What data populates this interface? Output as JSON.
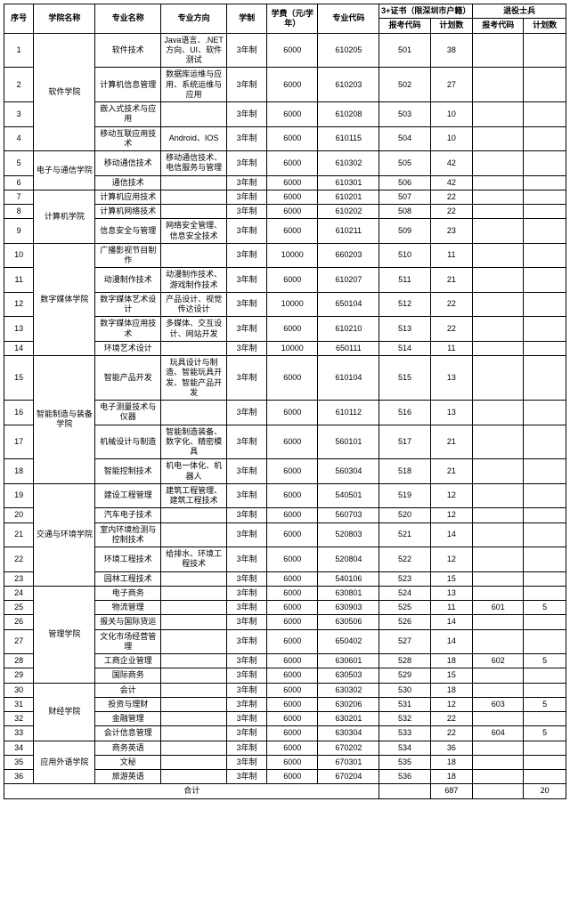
{
  "headers": {
    "seq": "序号",
    "dept": "学院名称",
    "major": "专业名称",
    "dir": "专业方向",
    "sys": "学制",
    "fee": "学费（元/学年）",
    "code": "专业代码",
    "group3": "3+证书（限深圳市户籍）",
    "groupVet": "退役士兵",
    "applyCode": "报考代码",
    "planCount": "计划数"
  },
  "colWidths": {
    "seq": 28,
    "dept": 58,
    "major": 62,
    "dir": 62,
    "sys": 38,
    "fee": 48,
    "code": 58,
    "c1": 48,
    "c2": 40,
    "c3": 48,
    "c4": 40
  },
  "styling": {
    "background_color": "#ffffff",
    "border_color": "#000000",
    "text_color": "#000000",
    "font_size_pt": 7,
    "font_family": "Microsoft YaHei / SimSun",
    "header_font_weight": "bold",
    "cell_align": "center"
  },
  "departments": [
    {
      "name": "软件学院",
      "rows": [
        {
          "seq": 1,
          "major": "软件技术",
          "dir": "Java语言、.NET方向、UI、软件测试",
          "sys": "3年制",
          "fee": "6000",
          "code": "610205",
          "c1": "501",
          "c2": "38",
          "c3": "",
          "c4": ""
        },
        {
          "seq": 2,
          "major": "计算机信息管理",
          "dir": "数据库运维与应用、系统运维与应用",
          "sys": "3年制",
          "fee": "6000",
          "code": "610203",
          "c1": "502",
          "c2": "27",
          "c3": "",
          "c4": ""
        },
        {
          "seq": 3,
          "major": "嵌入式技术与应用",
          "dir": "",
          "sys": "3年制",
          "fee": "6000",
          "code": "610208",
          "c1": "503",
          "c2": "10",
          "c3": "",
          "c4": ""
        },
        {
          "seq": 4,
          "major": "移动互联应用技术",
          "dir": "Android、IOS",
          "sys": "3年制",
          "fee": "6000",
          "code": "610115",
          "c1": "504",
          "c2": "10",
          "c3": "",
          "c4": ""
        }
      ]
    },
    {
      "name": "电子与通信学院",
      "rows": [
        {
          "seq": 5,
          "major": "移动通信技术",
          "dir": "移动通信技术、电信服务与管理",
          "sys": "3年制",
          "fee": "6000",
          "code": "610302",
          "c1": "505",
          "c2": "42",
          "c3": "",
          "c4": ""
        },
        {
          "seq": 6,
          "major": "通信技术",
          "dir": "",
          "sys": "3年制",
          "fee": "6000",
          "code": "610301",
          "c1": "506",
          "c2": "42",
          "c3": "",
          "c4": ""
        }
      ]
    },
    {
      "name": "计算机学院",
      "rows": [
        {
          "seq": 7,
          "major": "计算机应用技术",
          "dir": "",
          "sys": "3年制",
          "fee": "6000",
          "code": "610201",
          "c1": "507",
          "c2": "22",
          "c3": "",
          "c4": ""
        },
        {
          "seq": 8,
          "major": "计算机网络技术",
          "dir": "",
          "sys": "3年制",
          "fee": "6000",
          "code": "610202",
          "c1": "508",
          "c2": "22",
          "c3": "",
          "c4": ""
        },
        {
          "seq": 9,
          "major": "信息安全与管理",
          "dir": "网络安全管理、信息安全技术",
          "sys": "3年制",
          "fee": "6000",
          "code": "610211",
          "c1": "509",
          "c2": "23",
          "c3": "",
          "c4": ""
        }
      ]
    },
    {
      "name": "数字媒体学院",
      "rows": [
        {
          "seq": 10,
          "major": "广播影视节目制作",
          "dir": "",
          "sys": "3年制",
          "fee": "10000",
          "code": "660203",
          "c1": "510",
          "c2": "11",
          "c3": "",
          "c4": ""
        },
        {
          "seq": 11,
          "major": "动漫制作技术",
          "dir": "动漫制作技术、游戏制作技术",
          "sys": "3年制",
          "fee": "6000",
          "code": "610207",
          "c1": "511",
          "c2": "21",
          "c3": "",
          "c4": ""
        },
        {
          "seq": 12,
          "major": "数字媒体艺术设计",
          "dir": "产品设计、视觉传达设计",
          "sys": "3年制",
          "fee": "10000",
          "code": "650104",
          "c1": "512",
          "c2": "22",
          "c3": "",
          "c4": ""
        },
        {
          "seq": 13,
          "major": "数字媒体应用技术",
          "dir": "多媒体、交互设计、网站开发",
          "sys": "3年制",
          "fee": "6000",
          "code": "610210",
          "c1": "513",
          "c2": "22",
          "c3": "",
          "c4": ""
        },
        {
          "seq": 14,
          "major": "环境艺术设计",
          "dir": "",
          "sys": "3年制",
          "fee": "10000",
          "code": "650111",
          "c1": "514",
          "c2": "11",
          "c3": "",
          "c4": ""
        }
      ]
    },
    {
      "name": "智能制造与装备学院",
      "rows": [
        {
          "seq": 15,
          "major": "智能产品开发",
          "dir": "玩具设计与制造、智能玩具开发、智能产品开发",
          "sys": "3年制",
          "fee": "6000",
          "code": "610104",
          "c1": "515",
          "c2": "13",
          "c3": "",
          "c4": ""
        },
        {
          "seq": 16,
          "major": "电子测量技术与仪器",
          "dir": "",
          "sys": "3年制",
          "fee": "6000",
          "code": "610112",
          "c1": "516",
          "c2": "13",
          "c3": "",
          "c4": ""
        },
        {
          "seq": 17,
          "major": "机械设计与制造",
          "dir": "智能制造装备、数字化、精密模具",
          "sys": "3年制",
          "fee": "6000",
          "code": "560101",
          "c1": "517",
          "c2": "21",
          "c3": "",
          "c4": ""
        },
        {
          "seq": 18,
          "major": "智能控制技术",
          "dir": "机电一体化、机器人",
          "sys": "3年制",
          "fee": "6000",
          "code": "560304",
          "c1": "518",
          "c2": "21",
          "c3": "",
          "c4": ""
        }
      ]
    },
    {
      "name": "交通与环境学院",
      "rows": [
        {
          "seq": 19,
          "major": "建设工程管理",
          "dir": "建筑工程管理、建筑工程技术",
          "sys": "3年制",
          "fee": "6000",
          "code": "540501",
          "c1": "519",
          "c2": "12",
          "c3": "",
          "c4": ""
        },
        {
          "seq": 20,
          "major": "汽车电子技术",
          "dir": "",
          "sys": "3年制",
          "fee": "6000",
          "code": "560703",
          "c1": "520",
          "c2": "12",
          "c3": "",
          "c4": ""
        },
        {
          "seq": 21,
          "major": "室内环境检测与控制技术",
          "dir": "",
          "sys": "3年制",
          "fee": "6000",
          "code": "520803",
          "c1": "521",
          "c2": "14",
          "c3": "",
          "c4": ""
        },
        {
          "seq": 22,
          "major": "环境工程技术",
          "dir": "给排水、环境工程技术",
          "sys": "3年制",
          "fee": "6000",
          "code": "520804",
          "c1": "522",
          "c2": "12",
          "c3": "",
          "c4": ""
        },
        {
          "seq": 23,
          "major": "园林工程技术",
          "dir": "",
          "sys": "3年制",
          "fee": "6000",
          "code": "540106",
          "c1": "523",
          "c2": "15",
          "c3": "",
          "c4": ""
        }
      ]
    },
    {
      "name": "管理学院",
      "rows": [
        {
          "seq": 24,
          "major": "电子商务",
          "dir": "",
          "sys": "3年制",
          "fee": "6000",
          "code": "630801",
          "c1": "524",
          "c2": "13",
          "c3": "",
          "c4": ""
        },
        {
          "seq": 25,
          "major": "物流管理",
          "dir": "",
          "sys": "3年制",
          "fee": "6000",
          "code": "630903",
          "c1": "525",
          "c2": "11",
          "c3": "601",
          "c4": "5"
        },
        {
          "seq": 26,
          "major": "报关与国际货运",
          "dir": "",
          "sys": "3年制",
          "fee": "6000",
          "code": "630506",
          "c1": "526",
          "c2": "14",
          "c3": "",
          "c4": ""
        },
        {
          "seq": 27,
          "major": "文化市场经营管理",
          "dir": "",
          "sys": "3年制",
          "fee": "6000",
          "code": "650402",
          "c1": "527",
          "c2": "14",
          "c3": "",
          "c4": ""
        },
        {
          "seq": 28,
          "major": "工商企业管理",
          "dir": "",
          "sys": "3年制",
          "fee": "6000",
          "code": "630601",
          "c1": "528",
          "c2": "18",
          "c3": "602",
          "c4": "5"
        },
        {
          "seq": 29,
          "major": "国际商务",
          "dir": "",
          "sys": "3年制",
          "fee": "6000",
          "code": "630503",
          "c1": "529",
          "c2": "15",
          "c3": "",
          "c4": ""
        }
      ]
    },
    {
      "name": "财经学院",
      "rows": [
        {
          "seq": 30,
          "major": "会计",
          "dir": "",
          "sys": "3年制",
          "fee": "6000",
          "code": "630302",
          "c1": "530",
          "c2": "18",
          "c3": "",
          "c4": ""
        },
        {
          "seq": 31,
          "major": "投资与理财",
          "dir": "",
          "sys": "3年制",
          "fee": "6000",
          "code": "630206",
          "c1": "531",
          "c2": "12",
          "c3": "603",
          "c4": "5"
        },
        {
          "seq": 32,
          "major": "金融管理",
          "dir": "",
          "sys": "3年制",
          "fee": "6000",
          "code": "630201",
          "c1": "532",
          "c2": "22",
          "c3": "",
          "c4": ""
        },
        {
          "seq": 33,
          "major": "会计信息管理",
          "dir": "",
          "sys": "3年制",
          "fee": "6000",
          "code": "630304",
          "c1": "533",
          "c2": "22",
          "c3": "604",
          "c4": "5"
        }
      ]
    },
    {
      "name": "应用外语学院",
      "rows": [
        {
          "seq": 34,
          "major": "商务英语",
          "dir": "",
          "sys": "3年制",
          "fee": "6000",
          "code": "670202",
          "c1": "534",
          "c2": "36",
          "c3": "",
          "c4": ""
        },
        {
          "seq": 35,
          "major": "文秘",
          "dir": "",
          "sys": "3年制",
          "fee": "6000",
          "code": "670301",
          "c1": "535",
          "c2": "18",
          "c3": "",
          "c4": ""
        },
        {
          "seq": 36,
          "major": "旅游英语",
          "dir": "",
          "sys": "3年制",
          "fee": "6000",
          "code": "670204",
          "c1": "536",
          "c2": "18",
          "c3": "",
          "c4": ""
        }
      ]
    }
  ],
  "totals": {
    "label": "合计",
    "c2": "687",
    "c4": "20"
  }
}
